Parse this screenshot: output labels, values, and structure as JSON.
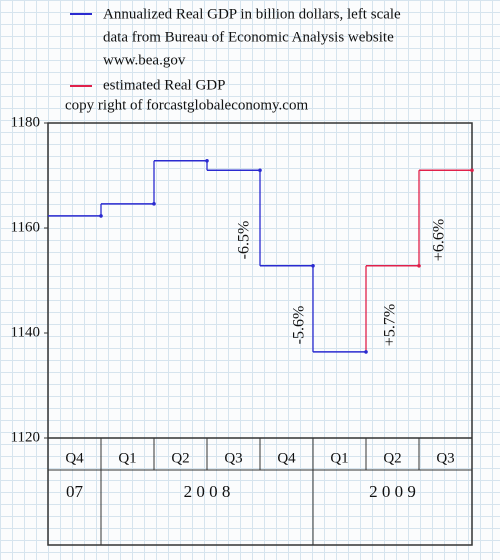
{
  "chart_data": {
    "type": "step",
    "categories": [
      "Q4",
      "Q1",
      "Q2",
      "Q3",
      "Q4",
      "Q1",
      "Q2",
      "Q3"
    ],
    "year_labels": [
      "07",
      "2 0 0 8",
      "2 0 0 9"
    ],
    "series": [
      {
        "name": "Annualized Real GDP in billion dollars, left scale",
        "color": "#2a2ad0",
        "values": [
          1162.3,
          1164.6,
          1172.8,
          1171.0,
          1152.8,
          1136.4,
          null,
          null
        ]
      },
      {
        "name": "estimated Real GDP",
        "color": "#e0204a",
        "values": [
          null,
          null,
          null,
          null,
          null,
          null,
          1152.8,
          1171.0
        ]
      }
    ],
    "notes": [
      "data from Bureau of Economic Analysis website",
      "www.bea.gov",
      "copy right of forcastglobaleconomy.com"
    ],
    "annotations": [
      {
        "text": "-6.5%",
        "color": "#2a2ad0"
      },
      {
        "text": "-5.6%",
        "color": "#2a2ad0"
      },
      {
        "text": "+5.7%",
        "color": "#e0204a"
      },
      {
        "text": "+6.6%",
        "color": "#e0204a"
      }
    ],
    "ylim": [
      1120,
      1180
    ],
    "yticks": [
      1120,
      1140,
      1160,
      1180
    ]
  }
}
